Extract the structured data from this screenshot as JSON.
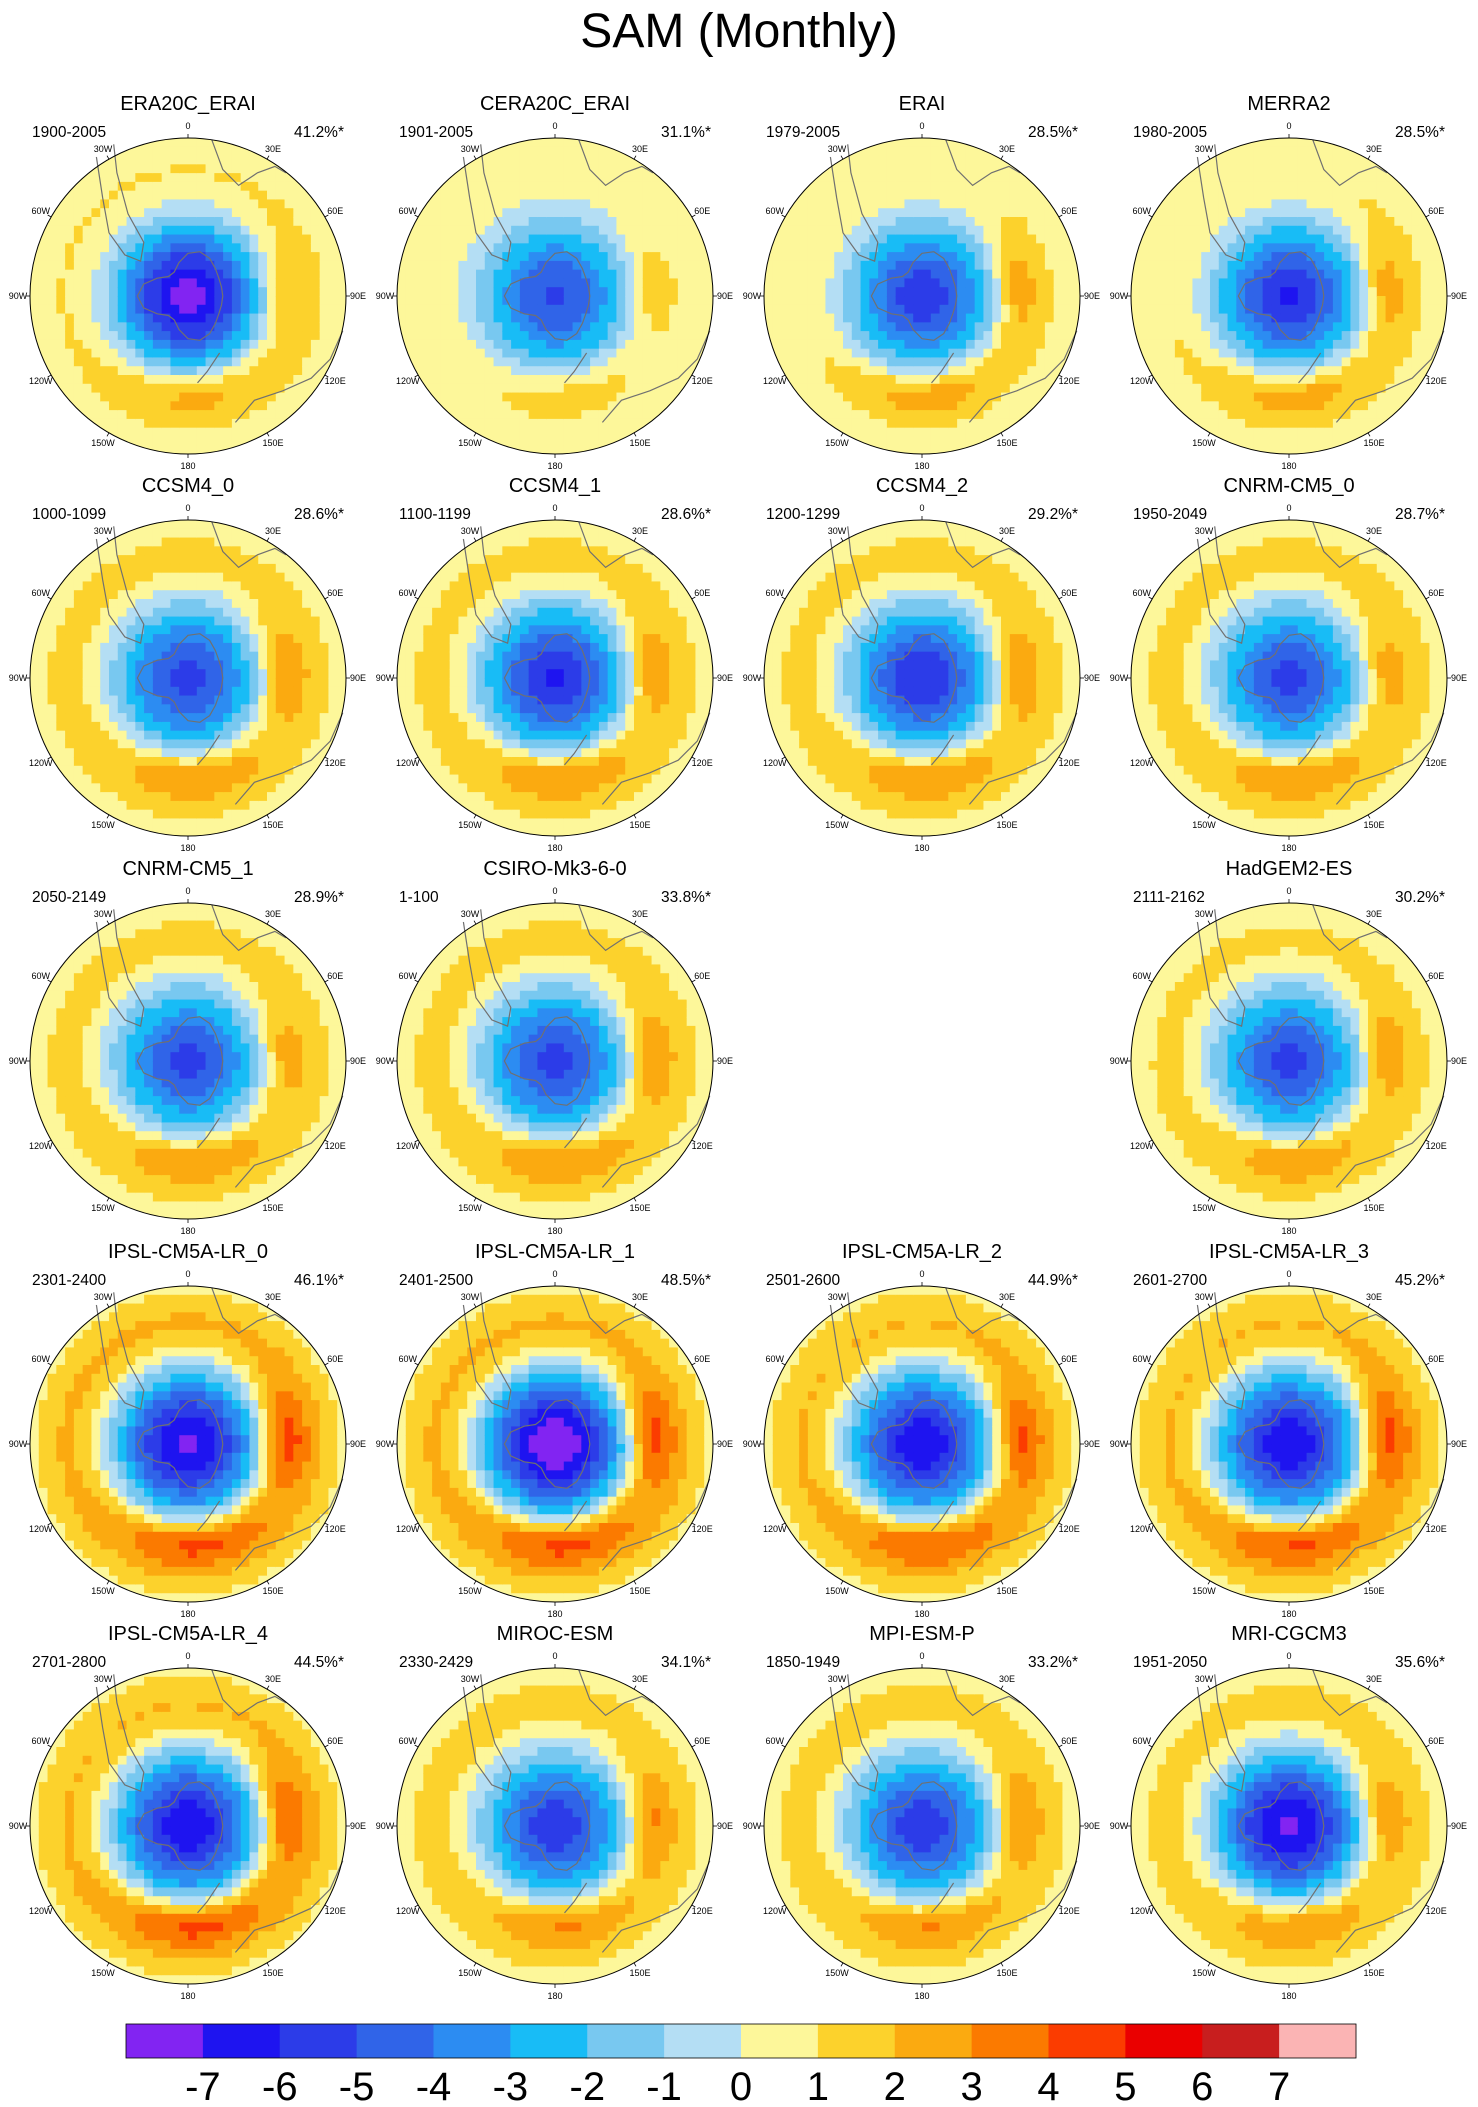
{
  "figure_title": "SAM (Monthly)",
  "colors": {
    "levels": [
      {
        "lo": -99,
        "hi": -7,
        "color": "#8224f2"
      },
      {
        "lo": -7,
        "hi": -6,
        "color": "#1e14f0"
      },
      {
        "lo": -6,
        "hi": -5,
        "color": "#2c3ce8"
      },
      {
        "lo": -5,
        "hi": -4,
        "color": "#3064e8"
      },
      {
        "lo": -4,
        "hi": -3,
        "color": "#2c8cf2"
      },
      {
        "lo": -3,
        "hi": -2,
        "color": "#18bcf6"
      },
      {
        "lo": -2,
        "hi": -1,
        "color": "#78c8f0"
      },
      {
        "lo": -1,
        "hi": 0,
        "color": "#b4def4"
      },
      {
        "lo": 0,
        "hi": 1,
        "color": "#fdf79a"
      },
      {
        "lo": 1,
        "hi": 2,
        "color": "#fcd22c"
      },
      {
        "lo": 2,
        "hi": 3,
        "color": "#fbaa10"
      },
      {
        "lo": 3,
        "hi": 4,
        "color": "#fb7a00"
      },
      {
        "lo": 4,
        "hi": 5,
        "color": "#fb3c00"
      },
      {
        "lo": 5,
        "hi": 6,
        "color": "#ea0000"
      },
      {
        "lo": 6,
        "hi": 7,
        "color": "#c81e1e"
      },
      {
        "lo": 7,
        "hi": 99,
        "color": "#fbb4b4"
      }
    ],
    "land_outline": "#707070"
  },
  "longitude_labels": [
    "0",
    "30E",
    "60E",
    "90E",
    "120E",
    "150E",
    "180",
    "150W",
    "120W",
    "90W",
    "60W",
    "30W"
  ],
  "chart_data": {
    "type": "polar-contour",
    "colorbar": {
      "tick_labels": [
        "-7",
        "-6",
        "-5",
        "-4",
        "-3",
        "-2",
        "-1",
        "0",
        "1",
        "2",
        "3",
        "4",
        "5",
        "6",
        "7"
      ]
    },
    "panels": [
      {
        "title": "ERA20C_ERAI",
        "period": "1900-2005",
        "variance": "41.2%*",
        "row": 0,
        "col": 0,
        "center_min": -7.4,
        "ring_peak": 1.3,
        "pac_peak": 1.8,
        "ind_peak": 1.6
      },
      {
        "title": "CERA20C_ERAI",
        "period": "1901-2005",
        "variance": "31.1%*",
        "row": 0,
        "col": 1,
        "center_min": -5.2,
        "ring_peak": 0.8,
        "pac_peak": 1.3,
        "ind_peak": 1.4
      },
      {
        "title": "ERAI",
        "period": "1979-2005",
        "variance": "28.5%*",
        "row": 0,
        "col": 2,
        "center_min": -5.6,
        "ring_peak": 1.1,
        "pac_peak": 2.2,
        "ind_peak": 2.3
      },
      {
        "title": "MERRA2",
        "period": "1980-2005",
        "variance": "28.5%*",
        "row": 0,
        "col": 3,
        "center_min": -6.1,
        "ring_peak": 1.2,
        "pac_peak": 2.1,
        "ind_peak": 2.2
      },
      {
        "title": "CCSM4_0",
        "period": "1000-1099",
        "variance": "28.6%*",
        "row": 1,
        "col": 0,
        "center_min": -5.4,
        "ring_peak": 1.5,
        "pac_peak": 2.2,
        "ind_peak": 2.3
      },
      {
        "title": "CCSM4_1",
        "period": "1100-1199",
        "variance": "28.6%*",
        "row": 1,
        "col": 1,
        "center_min": -6.2,
        "ring_peak": 1.5,
        "pac_peak": 2.3,
        "ind_peak": 2.2
      },
      {
        "title": "CCSM4_2",
        "period": "1200-1299",
        "variance": "29.2%*",
        "row": 1,
        "col": 2,
        "center_min": -5.9,
        "ring_peak": 1.5,
        "pac_peak": 2.3,
        "ind_peak": 2.3
      },
      {
        "title": "CNRM-CM5_0",
        "period": "1950-2049",
        "variance": "28.7%*",
        "row": 1,
        "col": 3,
        "center_min": -5.3,
        "ring_peak": 1.5,
        "pac_peak": 2.1,
        "ind_peak": 1.8
      },
      {
        "title": "CNRM-CM5_1",
        "period": "2050-2149",
        "variance": "28.9%*",
        "row": 2,
        "col": 0,
        "center_min": -5.3,
        "ring_peak": 1.5,
        "pac_peak": 2.1,
        "ind_peak": 1.8
      },
      {
        "title": "CSIRO-Mk3-6-0",
        "period": "1-100",
        "variance": "33.8%*",
        "row": 2,
        "col": 1,
        "center_min": -5.4,
        "ring_peak": 1.5,
        "pac_peak": 2.3,
        "ind_peak": 2.3
      },
      {
        "title": "HadGEM2-ES",
        "period": "2111-2162",
        "variance": "30.2%*",
        "row": 2,
        "col": 3,
        "center_min": -5.3,
        "ring_peak": 1.4,
        "pac_peak": 2.1,
        "ind_peak": 2.2
      },
      {
        "title": "IPSL-CM5A-LR_0",
        "period": "2301-2400",
        "variance": "46.1%*",
        "row": 3,
        "col": 0,
        "center_min": -7.2,
        "ring_peak": 2.4,
        "pac_peak": 2.9,
        "ind_peak": 3.4
      },
      {
        "title": "IPSL-CM5A-LR_1",
        "period": "2401-2500",
        "variance": "48.5%*",
        "row": 3,
        "col": 1,
        "center_min": -7.9,
        "ring_peak": 2.4,
        "pac_peak": 3.0,
        "ind_peak": 3.3
      },
      {
        "title": "IPSL-CM5A-LR_2",
        "period": "2501-2600",
        "variance": "44.9%*",
        "row": 3,
        "col": 2,
        "center_min": -6.9,
        "ring_peak": 2.3,
        "pac_peak": 2.8,
        "ind_peak": 3.1
      },
      {
        "title": "IPSL-CM5A-LR_3",
        "period": "2601-2700",
        "variance": "45.2%*",
        "row": 3,
        "col": 3,
        "center_min": -6.9,
        "ring_peak": 2.3,
        "pac_peak": 2.9,
        "ind_peak": 3.3
      },
      {
        "title": "IPSL-CM5A-LR_4",
        "period": "2701-2800",
        "variance": "44.5%*",
        "row": 4,
        "col": 0,
        "center_min": -6.9,
        "ring_peak": 2.3,
        "pac_peak": 3.0,
        "ind_peak": 2.8
      },
      {
        "title": "MIROC-ESM",
        "period": "2330-2429",
        "variance": "34.1%*",
        "row": 4,
        "col": 1,
        "center_min": -5.6,
        "ring_peak": 1.6,
        "pac_peak": 2.3,
        "ind_peak": 2.4
      },
      {
        "title": "MPI-ESM-P",
        "period": "1850-1949",
        "variance": "33.2%*",
        "row": 4,
        "col": 2,
        "center_min": -5.7,
        "ring_peak": 1.6,
        "pac_peak": 2.3,
        "ind_peak": 2.2
      },
      {
        "title": "MRI-CGCM3",
        "period": "1951-2050",
        "variance": "35.6%*",
        "row": 4,
        "col": 3,
        "center_min": -7.3,
        "ring_peak": 1.6,
        "pac_peak": 2.2,
        "ind_peak": 2.2
      }
    ]
  }
}
